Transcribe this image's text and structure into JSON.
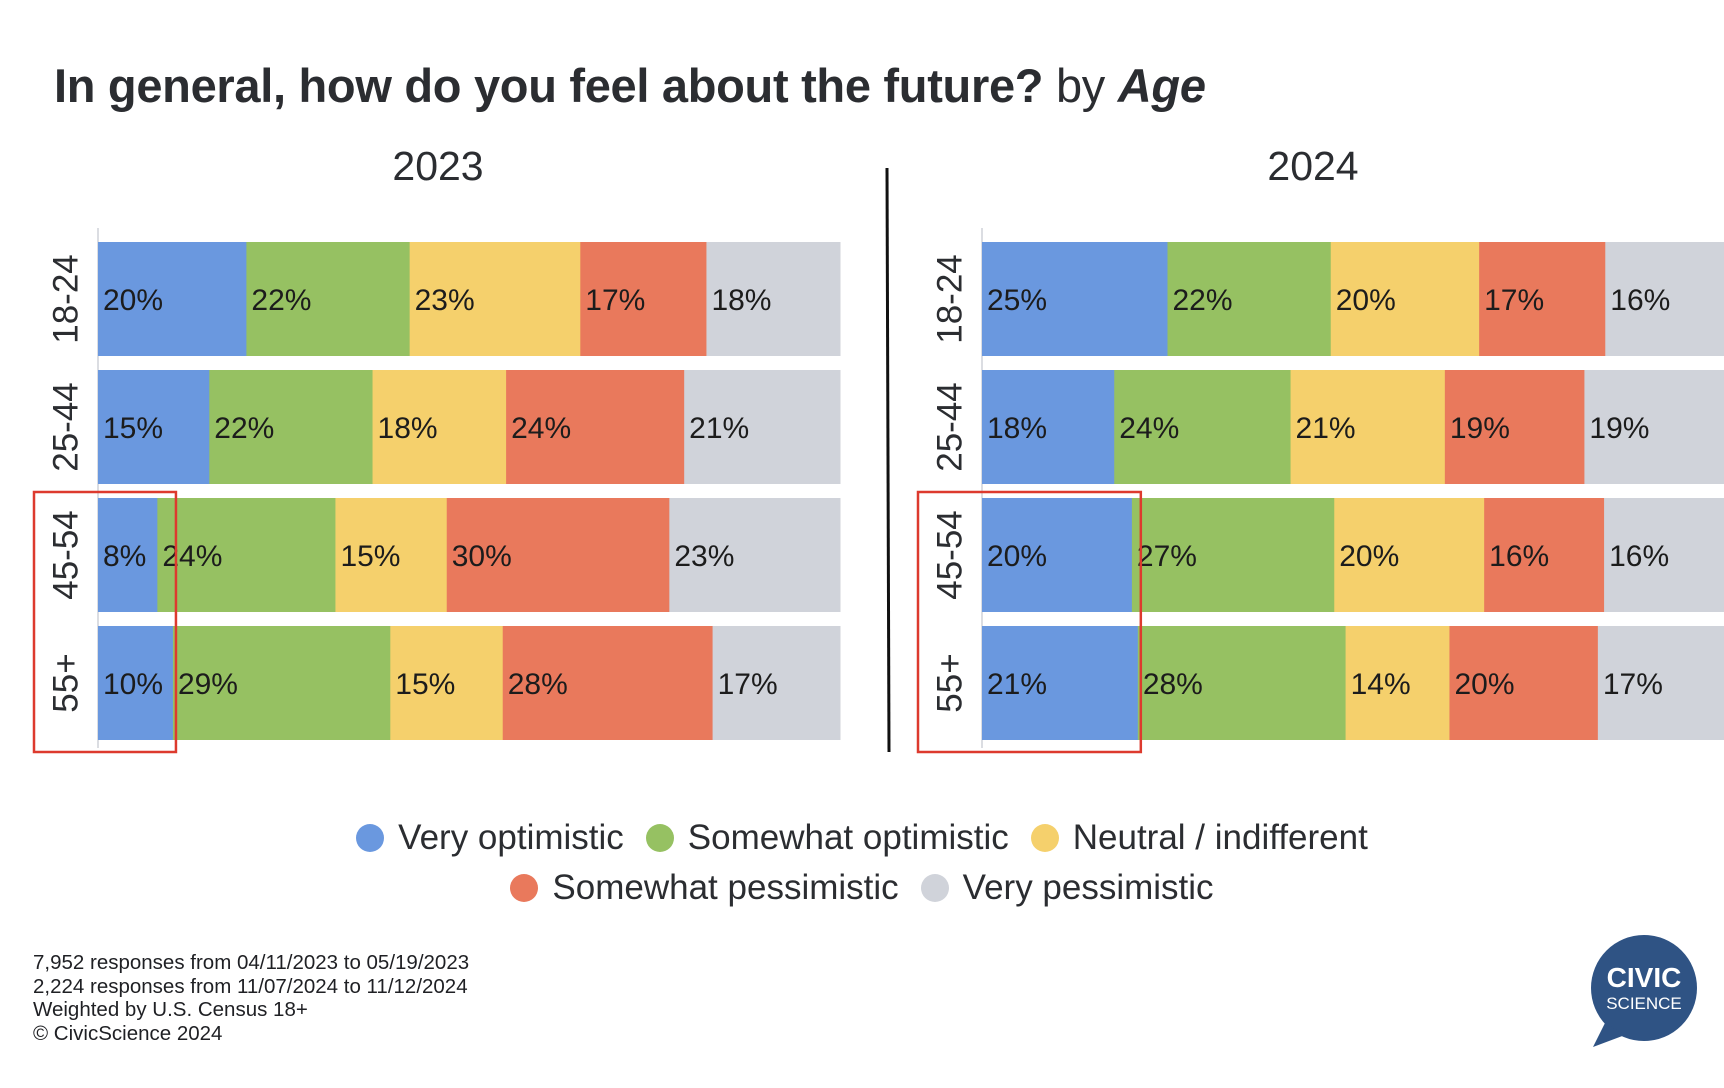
{
  "title": {
    "question": "In general, how do you feel about the future?",
    "by": "by",
    "dimension": "Age"
  },
  "chart_data": {
    "type": "bar",
    "orientation": "horizontal",
    "stacked": true,
    "categories": [
      "18-24",
      "25-44",
      "45-54",
      "55+"
    ],
    "highlighted_categories": [
      "45-54",
      "55+"
    ],
    "highlighted_series": "Very optimistic",
    "series_names": [
      "Very optimistic",
      "Somewhat optimistic",
      "Neutral / indifferent",
      "Somewhat pessimistic",
      "Very pessimistic"
    ],
    "series_colors": [
      "#6a98df",
      "#96c162",
      "#f5d06c",
      "#e9795c",
      "#d0d3da"
    ],
    "panels": [
      {
        "title": "2023",
        "rows": [
          [
            20,
            22,
            23,
            17,
            18
          ],
          [
            15,
            22,
            18,
            24,
            21
          ],
          [
            8,
            24,
            15,
            30,
            23
          ],
          [
            10,
            29,
            15,
            28,
            17
          ]
        ]
      },
      {
        "title": "2024",
        "rows": [
          [
            25,
            22,
            20,
            17,
            16
          ],
          [
            18,
            24,
            21,
            19,
            19
          ],
          [
            20,
            27,
            20,
            16,
            16
          ],
          [
            21,
            28,
            14,
            20,
            17
          ]
        ]
      }
    ],
    "value_suffix": "%",
    "legend_position": "bottom"
  },
  "legend": {
    "row1": [
      "Very optimistic",
      "Somewhat optimistic",
      "Neutral / indifferent"
    ],
    "row2": [
      "Somewhat pessimistic",
      "Very pessimistic"
    ]
  },
  "footnotes": [
    "7,952 responses from 04/11/2023 to 05/19/2023",
    "2,224 responses from 11/07/2024 to 11/12/2024",
    "Weighted by U.S. Census 18+",
    "© CivicScience 2024"
  ],
  "logo": {
    "line1": "CIVIC",
    "line2": "SCIENCE",
    "color": "#2f5384"
  }
}
